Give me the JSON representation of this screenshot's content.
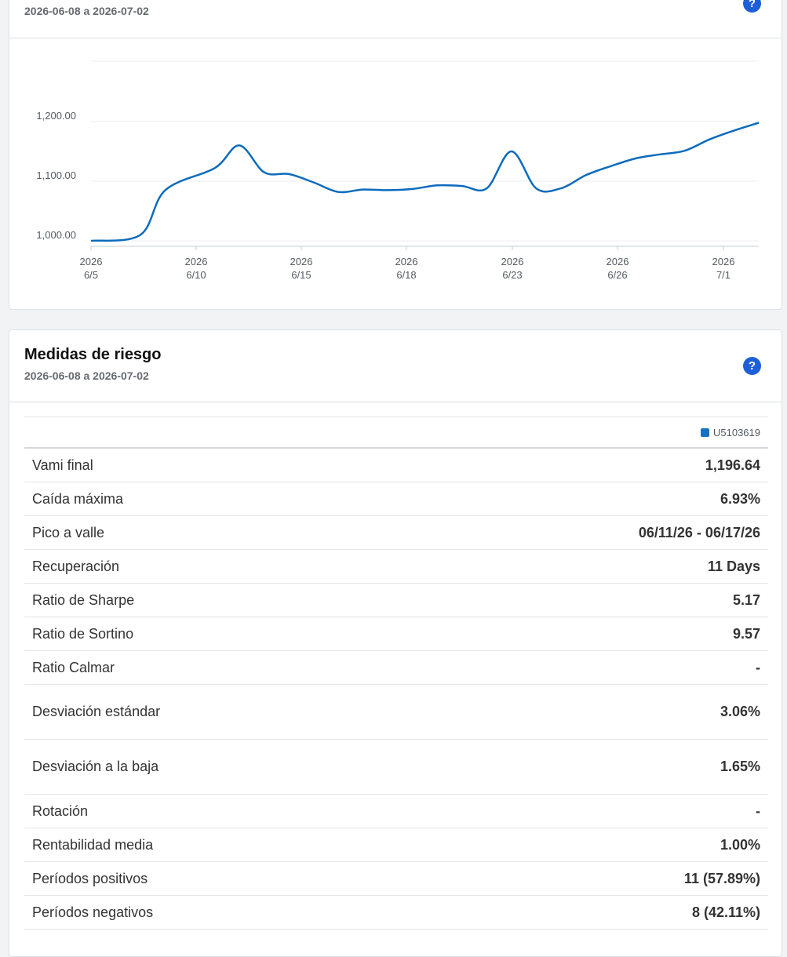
{
  "performance_card": {
    "date_range": "2026-06-08 a 2026-07-02",
    "help": "?"
  },
  "chart_data": {
    "type": "line",
    "x": [
      "2026-06-05",
      "2026-06-07",
      "2026-06-08",
      "2026-06-10",
      "2026-06-11",
      "2026-06-12",
      "2026-06-13",
      "2026-06-14",
      "2026-06-15",
      "2026-06-16",
      "2026-06-17",
      "2026-06-18",
      "2026-06-19",
      "2026-06-20",
      "2026-06-21",
      "2026-06-22",
      "2026-06-23",
      "2026-06-24",
      "2026-06-25",
      "2026-06-26",
      "2026-06-27",
      "2026-06-28",
      "2026-06-29",
      "2026-06-30",
      "2026-07-01",
      "2026-07-02"
    ],
    "series": [
      {
        "values": [
          1000,
          1010,
          1085,
          1122,
          1160,
          1115,
          1112,
          1098,
          1082,
          1086,
          1085,
          1087,
          1093,
          1092,
          1088,
          1150,
          1088,
          1088,
          1110,
          1125,
          1138,
          1145,
          1151,
          1170,
          1185,
          1198
        ]
      }
    ],
    "yticks": [
      "1,000.00",
      "1,100.00",
      "1,200.00"
    ],
    "ytick_values": [
      1000,
      1100,
      1200
    ],
    "xticks": [
      {
        "year": "2026",
        "day": "6/5"
      },
      {
        "year": "2026",
        "day": "6/10"
      },
      {
        "year": "2026",
        "day": "6/15"
      },
      {
        "year": "2026",
        "day": "6/18"
      },
      {
        "year": "2026",
        "day": "6/23"
      },
      {
        "year": "2026",
        "day": "6/26"
      },
      {
        "year": "2026",
        "day": "7/1"
      }
    ],
    "ylim": [
      990,
      1300
    ],
    "grid": true,
    "line_color": "#0d6bbd"
  },
  "risk_card": {
    "title": "Medidas de riesgo",
    "date_range": "2026-06-08 a 2026-07-02",
    "help": "?",
    "legend": "U5103619",
    "rows": [
      {
        "label": "Vami final",
        "value": "1,196.64"
      },
      {
        "label": "Caída máxima",
        "value": "6.93%"
      },
      {
        "label": "Pico a valle",
        "value": "06/11/26 - 06/17/26"
      },
      {
        "label": "Recuperación",
        "value": "11 Days"
      },
      {
        "label": "Ratio de Sharpe",
        "value": "5.17"
      },
      {
        "label": "Ratio de Sortino",
        "value": "9.57"
      },
      {
        "label": "Ratio Calmar",
        "value": "-"
      },
      {
        "label": "Desviación estándar",
        "value": "3.06%"
      },
      {
        "label": "Desviación a la baja",
        "value": "1.65%"
      },
      {
        "label": "Rotación",
        "value": "-"
      },
      {
        "label": "Rentabilidad media",
        "value": "1.00%"
      },
      {
        "label": "Períodos positivos",
        "value": "11 (57.89%)"
      },
      {
        "label": "Períodos negativos",
        "value": "8 (42.11%)"
      }
    ]
  },
  "colors": {
    "accent": "#1d5fd6",
    "series": "#0d6bbd"
  }
}
